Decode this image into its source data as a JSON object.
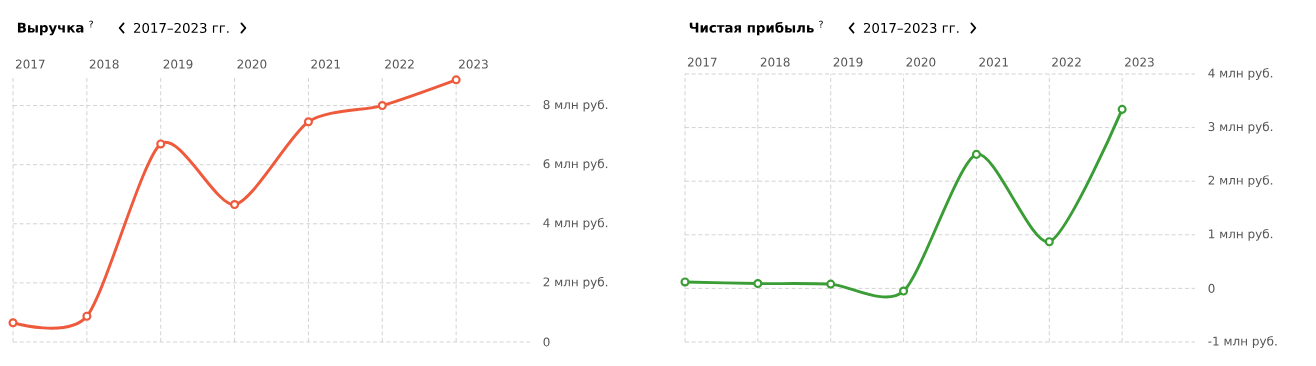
{
  "chart_data": [
    {
      "type": "line",
      "title": "**Выручка** $^{?}$",
      "subtitle": "2017–2023 гг.",
      "categories": [
        "2017",
        "2018",
        "2019",
        "2020",
        "2021",
        "2022",
        "2023"
      ],
      "series": [
        {
          "color": "#ef5a3c",
          "values": [
            0.65,
            0.87,
            6.7,
            4.65,
            7.45,
            8.0,
            8.87
          ]
        }
      ],
      "ylim": [
        0,
        9
      ],
      "yticks": [
        0,
        {
          "value": 2,
          "label": "2 млн руб."
        },
        {
          "value": 4,
          "label": "4 млн руб."
        },
        {
          "value": 6,
          "label": "6 млн руб."
        },
        {
          "value": 8,
          "label": "8 млн руб."
        }
      ],
      "grid": true,
      "marker": "circle"
    },
    {
      "type": "line",
      "title": "**Чистая прибыль** $^{?}$",
      "subtitle": "2017–2023 гг.",
      "categories": [
        "2017",
        "2018",
        "2019",
        "2020",
        "2021",
        "2022",
        "2023"
      ],
      "series": [
        {
          "color": "#3a9d35",
          "values": [
            0.12,
            0.09,
            0.08,
            -0.05,
            2.5,
            0.87,
            3.34
          ]
        }
      ],
      "ylim": [
        -1,
        4
      ],
      "yticks": [
        {
          "value": -1,
          "label": "-1 млн руб."
        },
        0,
        {
          "value": 1,
          "label": "1 млн руб."
        },
        {
          "value": 2,
          "label": "2 млн руб."
        },
        {
          "value": 3,
          "label": "3 млн руб."
        },
        {
          "value": 4,
          "label": "4 млн руб."
        }
      ],
      "grid": true,
      "marker": "circle"
    }
  ]
}
